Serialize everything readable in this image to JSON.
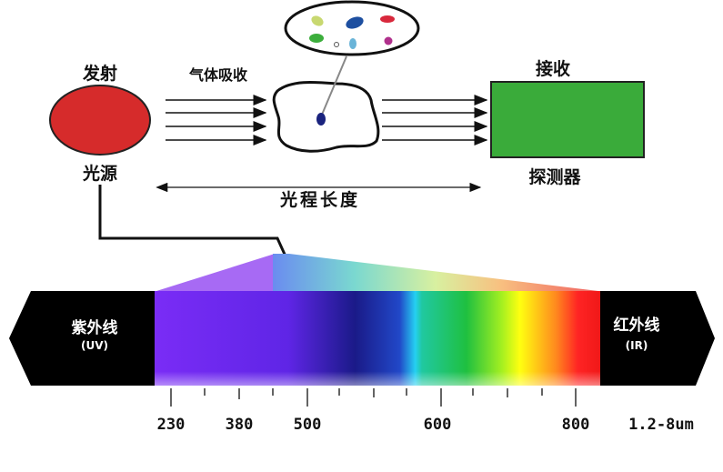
{
  "top": {
    "emit_label": "发射",
    "source_label": "光源",
    "absorb_label": "气体吸收",
    "receive_label": "接收",
    "detector_label": "探测器",
    "path_label": "光程长度"
  },
  "spectrum": {
    "uv_label": "紫外线",
    "uv_abbr": "(UV)",
    "ir_label": "红外线",
    "ir_abbr": "(IR)",
    "ticks": [
      "230",
      "380",
      "500",
      "600",
      "800",
      "1.2-8um"
    ]
  },
  "colors": {
    "source": "#d62b2b",
    "detector": "#3aab3a",
    "band_background": "#000000"
  }
}
